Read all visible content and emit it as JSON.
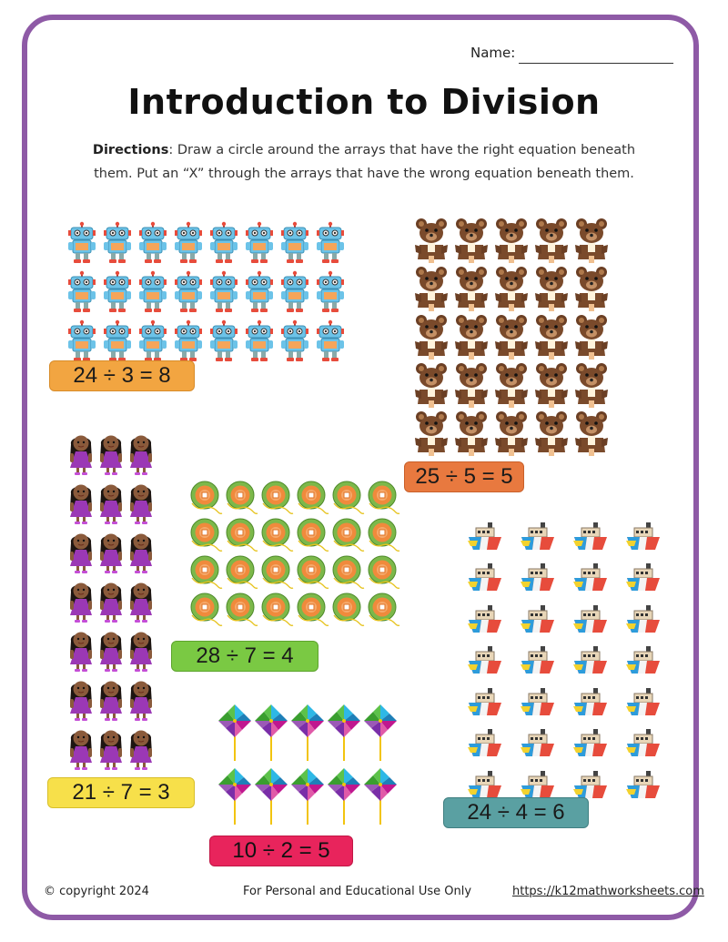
{
  "header": {
    "name_label": "Name:"
  },
  "title": "Introduction to Division",
  "directions": {
    "label": "Directions",
    "text_line1": ": Draw a circle around the arrays that have the right equation beneath",
    "text_line2": "them. Put an “X” through the arrays that have the wrong equation beneath them."
  },
  "arrays": [
    {
      "icon": "robot-icon",
      "rows": 3,
      "cols": 8,
      "equation": "24 ÷ 3 = 8",
      "equation_color": "#f2a541"
    },
    {
      "icon": "bear-icon",
      "rows": 5,
      "cols": 5,
      "equation": "25 ÷ 5 = 5",
      "equation_color": "#e8793f"
    },
    {
      "icon": "girl-icon",
      "rows": 7,
      "cols": 3,
      "equation": "21 ÷ 7 = 3",
      "equation_color": "#f7e04a"
    },
    {
      "icon": "yarn-ball-icon",
      "rows": 4,
      "cols": 6,
      "equation": "28 ÷ 7 = 4",
      "equation_color": "#7ac943"
    },
    {
      "icon": "boat-icon",
      "rows": 7,
      "cols": 4,
      "equation": "24 ÷ 4 = 6",
      "equation_color": "#5aa0a2"
    },
    {
      "icon": "pinwheel-icon",
      "rows": 2,
      "cols": 5,
      "equation": "10 ÷ 2 = 5",
      "equation_color": "#e8245c"
    }
  ],
  "footer": {
    "copyright": "© copyright 2024",
    "usage": "For Personal and Educational Use Only",
    "link": "https://k12mathworksheets.com"
  }
}
